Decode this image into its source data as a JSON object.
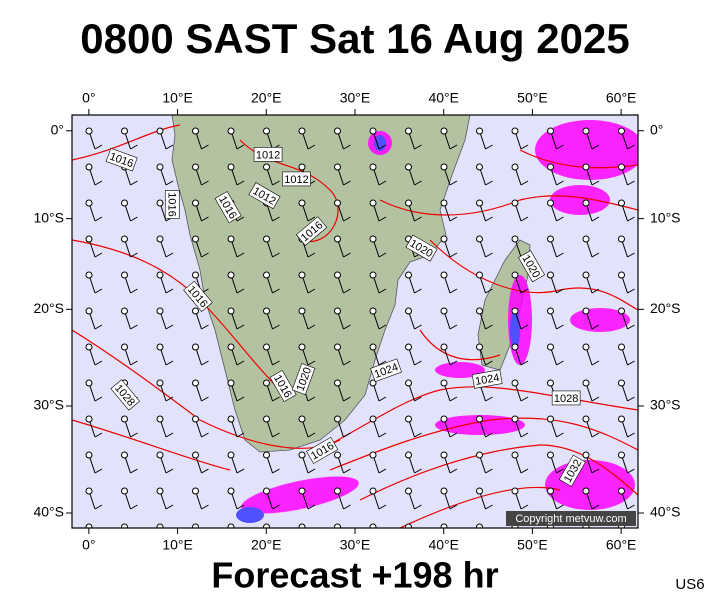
{
  "header": {
    "title": "0800 SAST Sat 16 Aug 2025"
  },
  "footer": {
    "forecast": "Forecast +198 hr",
    "code": "US6"
  },
  "map": {
    "projection": "mercator",
    "lonlim": [
      -1.9,
      61.9
    ],
    "latlim": [
      1.8,
      -41.3
    ],
    "lonticks": [
      {
        "value": 0,
        "label": "0°"
      },
      {
        "value": 10,
        "label": "10°E"
      },
      {
        "value": 20,
        "label": "20°E"
      },
      {
        "value": 30,
        "label": "30°E"
      },
      {
        "value": 40,
        "label": "40°E"
      },
      {
        "value": 50,
        "label": "50°E"
      },
      {
        "value": 60,
        "label": "60°E"
      }
    ],
    "latticks": [
      {
        "value": 0,
        "label": "0°"
      },
      {
        "value": -10,
        "label": "10°S"
      },
      {
        "value": -20,
        "label": "20°S"
      },
      {
        "value": -30,
        "label": "30°S"
      },
      {
        "value": -40,
        "label": "40°S"
      }
    ],
    "isobar_labels": [
      {
        "value": 1016,
        "lon": 3.7,
        "lat": -3.3
      },
      {
        "value": 1012,
        "lon": 20.2,
        "lat": -2.7
      },
      {
        "value": 1012,
        "lon": 23.4,
        "lat": -5.5
      },
      {
        "value": 1016,
        "lon": 9.4,
        "lat": -8.4
      },
      {
        "value": 1016,
        "lon": 15.7,
        "lat": -8.7
      },
      {
        "value": 1012,
        "lon": 19.8,
        "lat": -7.4
      },
      {
        "value": 1016,
        "lon": 25.1,
        "lat": -11.4
      },
      {
        "value": 1020,
        "lon": 37.5,
        "lat": -13.3
      },
      {
        "value": 1020,
        "lon": 49.9,
        "lat": -15.3
      },
      {
        "value": 1016,
        "lon": 12.3,
        "lat": -18.6
      },
      {
        "value": 1016,
        "lon": 21.9,
        "lat": -28.0
      },
      {
        "value": 1020,
        "lon": 24.2,
        "lat": -27.3
      },
      {
        "value": 1024,
        "lon": 33.5,
        "lat": -26.4
      },
      {
        "value": 1024,
        "lon": 44.9,
        "lat": -27.3
      },
      {
        "value": 1028,
        "lon": 53.8,
        "lat": -29.2
      },
      {
        "value": 1028,
        "lon": 4.1,
        "lat": -28.9
      },
      {
        "value": 1016,
        "lon": 26.3,
        "lat": -34.3
      },
      {
        "value": 1032,
        "lon": 54.5,
        "lat": -36.2
      }
    ],
    "copyright": "Copyright metvuw.com"
  }
}
